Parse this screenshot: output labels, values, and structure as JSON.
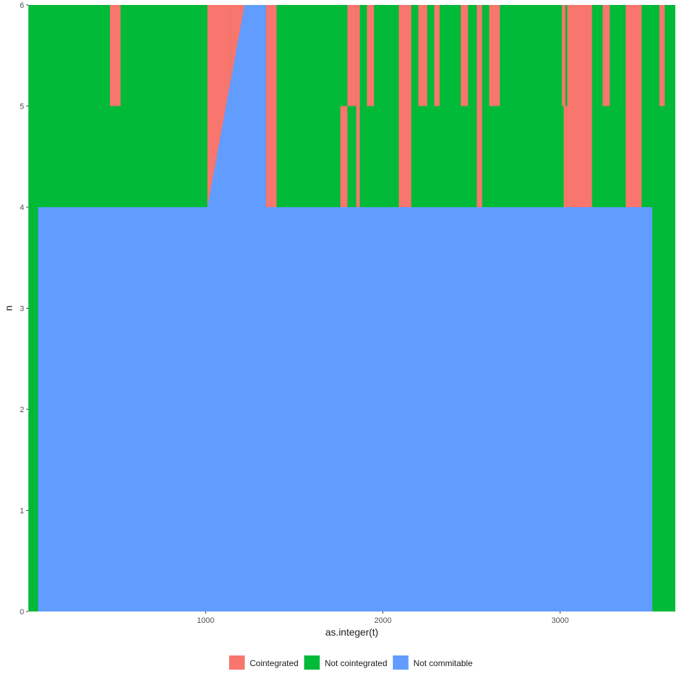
{
  "chart_data": {
    "type": "area",
    "stacked": true,
    "title": "",
    "xlabel": "as.integer(t)",
    "ylabel": "n",
    "xlim": [
      0,
      3650
    ],
    "ylim": [
      0,
      6
    ],
    "x_ticks": [
      1000,
      2000,
      3000
    ],
    "y_ticks": [
      0,
      1,
      2,
      3,
      4,
      5,
      6
    ],
    "grid": false,
    "legend_position": "bottom",
    "series": [
      {
        "name": "Not commitable",
        "color": "#619CFF",
        "points": [
          [
            0,
            0
          ],
          [
            55,
            0
          ],
          [
            55,
            4
          ],
          [
            1010,
            4
          ],
          [
            1220,
            6
          ],
          [
            1340,
            6
          ],
          [
            1340,
            4
          ],
          [
            3520,
            4
          ],
          [
            3520,
            0
          ],
          [
            3650,
            0
          ]
        ]
      },
      {
        "name": "Not cointegrated",
        "color": "#00BA38",
        "points": [
          [
            0,
            6
          ],
          [
            3650,
            6
          ]
        ]
      },
      {
        "name": "Cointegrated",
        "color": "#F8766D",
        "segments": [
          {
            "x0": 460,
            "x1": 520,
            "y0": 5,
            "y1": 6
          },
          {
            "x0": 1010,
            "x1": 1140,
            "y0": 4,
            "y1": 6
          },
          {
            "x0": 1140,
            "x1": 1220,
            "y0": 5,
            "y1": 6
          },
          {
            "x0": 1250,
            "x1": 1270,
            "y0": 5,
            "y1": 6
          },
          {
            "x0": 1340,
            "x1": 1400,
            "y0": 4,
            "y1": 6
          },
          {
            "x0": 1760,
            "x1": 1800,
            "y0": 4,
            "y1": 5
          },
          {
            "x0": 1800,
            "x1": 1850,
            "y0": 5,
            "y1": 6
          },
          {
            "x0": 1850,
            "x1": 1870,
            "y0": 4,
            "y1": 6
          },
          {
            "x0": 1910,
            "x1": 1950,
            "y0": 5,
            "y1": 6
          },
          {
            "x0": 2090,
            "x1": 2160,
            "y0": 4,
            "y1": 6
          },
          {
            "x0": 2200,
            "x1": 2250,
            "y0": 5,
            "y1": 6
          },
          {
            "x0": 2290,
            "x1": 2320,
            "y0": 5,
            "y1": 6
          },
          {
            "x0": 2440,
            "x1": 2480,
            "y0": 5,
            "y1": 6
          },
          {
            "x0": 2530,
            "x1": 2560,
            "y0": 4,
            "y1": 6
          },
          {
            "x0": 2600,
            "x1": 2660,
            "y0": 5,
            "y1": 6
          },
          {
            "x0": 3010,
            "x1": 3030,
            "y0": 5,
            "y1": 6
          },
          {
            "x0": 3020,
            "x1": 3040,
            "y0": 4,
            "y1": 5
          },
          {
            "x0": 3040,
            "x1": 3180,
            "y0": 4,
            "y1": 6
          },
          {
            "x0": 3240,
            "x1": 3280,
            "y0": 5,
            "y1": 6
          },
          {
            "x0": 3370,
            "x1": 3460,
            "y0": 4,
            "y1": 6
          },
          {
            "x0": 3560,
            "x1": 3590,
            "y0": 5,
            "y1": 6
          }
        ]
      }
    ],
    "legend": [
      {
        "label": "Cointegrated",
        "color": "#F8766D"
      },
      {
        "label": "Not cointegrated",
        "color": "#00BA38"
      },
      {
        "label": "Not commitable",
        "color": "#619CFF"
      }
    ]
  }
}
